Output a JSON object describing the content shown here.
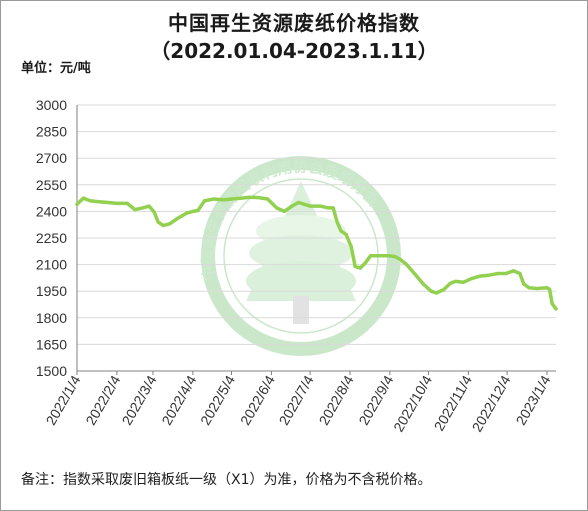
{
  "header": {
    "title": "中国再生资源废纸价格指数",
    "subtitle": "（2022.01.04-2023.1.11）",
    "unit_label": "单位：元/吨"
  },
  "footer": {
    "note": "备注：指数采取废旧箱板纸一级（X1）为准，价格为不含税价格。"
  },
  "watermark": {
    "text": "中国再生资源回收利用协会废纸分会",
    "color": "#5cb85c"
  },
  "colors": {
    "series": "#92d050",
    "grid": "#d9d9d9",
    "axis": "#808080"
  },
  "chart_data": {
    "type": "line",
    "title": "中国再生资源废纸价格指数",
    "xlabel": "",
    "ylabel": "",
    "ylim": [
      1500,
      3000
    ],
    "yticks": [
      3000,
      2850,
      2700,
      2550,
      2400,
      2250,
      2100,
      1950,
      1800,
      1650,
      1500
    ],
    "xticks": [
      "2022/1/4",
      "2022/2/4",
      "2022/3/4",
      "2022/4/4",
      "2022/5/4",
      "2022/6/4",
      "2022/7/4",
      "2022/8/4",
      "2022/9/4",
      "2022/10/4",
      "2022/11/4",
      "2022/12/4",
      "2023/1/4"
    ],
    "x_range": [
      "2022-01-04",
      "2023-01-11"
    ],
    "grid": true,
    "series": [
      {
        "points": [
          [
            "2022-01-04",
            2440
          ],
          [
            "2022-01-09",
            2475
          ],
          [
            "2022-01-14",
            2460
          ],
          [
            "2022-01-20",
            2455
          ],
          [
            "2022-01-28",
            2450
          ],
          [
            "2022-02-04",
            2445
          ],
          [
            "2022-02-12",
            2445
          ],
          [
            "2022-02-18",
            2410
          ],
          [
            "2022-02-24",
            2420
          ],
          [
            "2022-03-01",
            2430
          ],
          [
            "2022-03-05",
            2395
          ],
          [
            "2022-03-08",
            2340
          ],
          [
            "2022-03-12",
            2320
          ],
          [
            "2022-03-17",
            2330
          ],
          [
            "2022-03-23",
            2360
          ],
          [
            "2022-03-30",
            2390
          ],
          [
            "2022-04-04",
            2400
          ],
          [
            "2022-04-08",
            2405
          ],
          [
            "2022-04-13",
            2460
          ],
          [
            "2022-04-20",
            2470
          ],
          [
            "2022-04-28",
            2465
          ],
          [
            "2022-05-04",
            2470
          ],
          [
            "2022-05-12",
            2475
          ],
          [
            "2022-05-18",
            2480
          ],
          [
            "2022-05-25",
            2478
          ],
          [
            "2022-06-01",
            2470
          ],
          [
            "2022-06-08",
            2420
          ],
          [
            "2022-06-14",
            2400
          ],
          [
            "2022-06-20",
            2430
          ],
          [
            "2022-06-25",
            2450
          ],
          [
            "2022-07-04",
            2430
          ],
          [
            "2022-07-12",
            2430
          ],
          [
            "2022-07-18",
            2420
          ],
          [
            "2022-07-22",
            2420
          ],
          [
            "2022-07-25",
            2340
          ],
          [
            "2022-07-28",
            2290
          ],
          [
            "2022-08-01",
            2270
          ],
          [
            "2022-08-05",
            2200
          ],
          [
            "2022-08-08",
            2090
          ],
          [
            "2022-08-12",
            2080
          ],
          [
            "2022-08-16",
            2110
          ],
          [
            "2022-08-20",
            2150
          ],
          [
            "2022-08-26",
            2150
          ],
          [
            "2022-09-03",
            2150
          ],
          [
            "2022-09-08",
            2145
          ],
          [
            "2022-09-12",
            2130
          ],
          [
            "2022-09-17",
            2100
          ],
          [
            "2022-09-23",
            2050
          ],
          [
            "2022-09-30",
            1990
          ],
          [
            "2022-10-06",
            1950
          ],
          [
            "2022-10-10",
            1940
          ],
          [
            "2022-10-16",
            1960
          ],
          [
            "2022-10-21",
            1995
          ],
          [
            "2022-10-25",
            2005
          ],
          [
            "2022-10-31",
            2000
          ],
          [
            "2022-11-06",
            2020
          ],
          [
            "2022-11-13",
            2035
          ],
          [
            "2022-11-20",
            2040
          ],
          [
            "2022-11-27",
            2050
          ],
          [
            "2022-12-03",
            2050
          ],
          [
            "2022-12-09",
            2065
          ],
          [
            "2022-12-14",
            2050
          ],
          [
            "2022-12-17",
            1990
          ],
          [
            "2022-12-21",
            1970
          ],
          [
            "2022-12-27",
            1965
          ],
          [
            "2023-01-04",
            1970
          ],
          [
            "2023-01-06",
            1960
          ],
          [
            "2023-01-08",
            1880
          ],
          [
            "2023-01-11",
            1850
          ]
        ]
      }
    ]
  }
}
